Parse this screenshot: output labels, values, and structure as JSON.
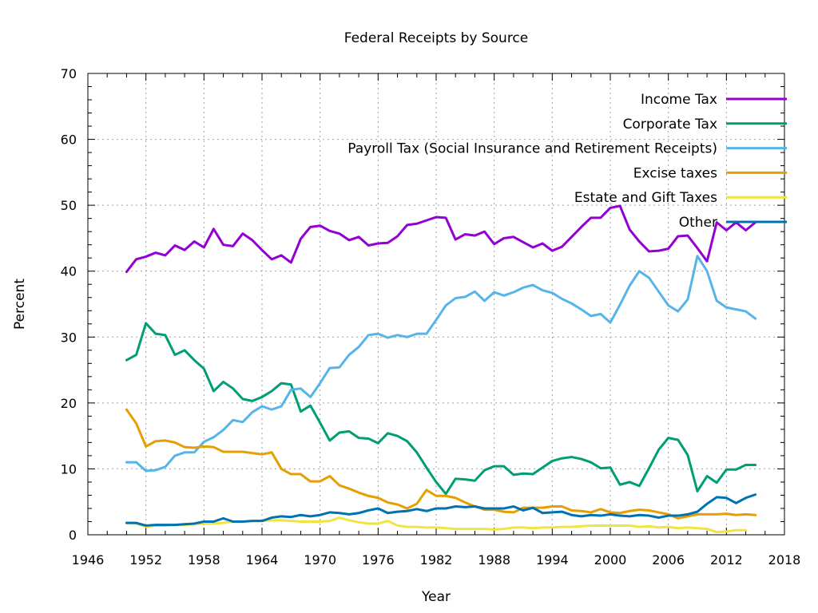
{
  "chart_data": {
    "type": "line",
    "title": "Federal Receipts by Source",
    "xlabel": "Year",
    "ylabel": "Percent",
    "xlim": [
      1946,
      2018
    ],
    "ylim": [
      0,
      70
    ],
    "x_ticks": [
      "1946",
      "1952",
      "1958",
      "1964",
      "1970",
      "1976",
      "1982",
      "1988",
      "1994",
      "2000",
      "2006",
      "2012",
      "2018"
    ],
    "y_ticks": [
      "0",
      "10",
      "20",
      "30",
      "40",
      "50",
      "60",
      "70"
    ],
    "grid": true,
    "legend_position": "top-right",
    "x": [
      1950,
      1951,
      1952,
      1953,
      1954,
      1955,
      1956,
      1957,
      1958,
      1959,
      1960,
      1961,
      1962,
      1963,
      1964,
      1965,
      1966,
      1967,
      1968,
      1969,
      1970,
      1971,
      1972,
      1973,
      1974,
      1975,
      1976,
      1977,
      1978,
      1979,
      1980,
      1981,
      1982,
      1983,
      1984,
      1985,
      1986,
      1987,
      1988,
      1989,
      1990,
      1991,
      1992,
      1993,
      1994,
      1995,
      1996,
      1997,
      1998,
      1999,
      2000,
      2001,
      2002,
      2003,
      2004,
      2005,
      2006,
      2007,
      2008,
      2009,
      2010,
      2011,
      2012,
      2013,
      2014,
      2015
    ],
    "series": [
      {
        "name": "Income Tax",
        "color": "#9400d3",
        "values": [
          39.9,
          41.8,
          42.2,
          42.8,
          42.4,
          43.9,
          43.2,
          44.5,
          43.6,
          46.4,
          44.0,
          43.8,
          45.7,
          44.7,
          43.2,
          41.8,
          42.4,
          41.3,
          44.9,
          46.7,
          46.9,
          46.1,
          45.7,
          44.7,
          45.2,
          43.9,
          44.2,
          44.3,
          45.3,
          47.0,
          47.2,
          47.7,
          48.2,
          48.1,
          44.8,
          45.6,
          45.4,
          46.0,
          44.1,
          45.0,
          45.2,
          44.4,
          43.6,
          44.2,
          43.1,
          43.7,
          45.2,
          46.7,
          48.1,
          48.1,
          49.6,
          49.9,
          46.3,
          44.5,
          43.0,
          43.1,
          43.4,
          45.3,
          45.4,
          43.5,
          41.5,
          47.4,
          46.2,
          47.4,
          46.2,
          47.4
        ]
      },
      {
        "name": "Corporate Tax",
        "color": "#009e73",
        "values": [
          26.5,
          27.3,
          32.1,
          30.5,
          30.3,
          27.3,
          28.0,
          26.5,
          25.2,
          21.8,
          23.2,
          22.2,
          20.6,
          20.3,
          20.9,
          21.8,
          23.0,
          22.8,
          18.7,
          19.6,
          17.0,
          14.3,
          15.5,
          15.7,
          14.7,
          14.6,
          13.9,
          15.4,
          15.0,
          14.2,
          12.5,
          10.2,
          8.0,
          6.2,
          8.5,
          8.4,
          8.2,
          9.8,
          10.4,
          10.4,
          9.1,
          9.3,
          9.2,
          10.2,
          11.2,
          11.6,
          11.8,
          11.5,
          11.0,
          10.1,
          10.2,
          7.6,
          8.0,
          7.4,
          10.1,
          12.9,
          14.7,
          14.4,
          12.1,
          6.6,
          8.9,
          7.9,
          9.9,
          9.9,
          10.6,
          10.6
        ]
      },
      {
        "name": "Payroll Tax (Social Insurance and Retirement Receipts)",
        "color": "#56b4e9",
        "values": [
          11.0,
          11.0,
          9.7,
          9.8,
          10.3,
          12.0,
          12.5,
          12.5,
          14.1,
          14.8,
          15.9,
          17.4,
          17.1,
          18.6,
          19.5,
          19.0,
          19.5,
          22.0,
          22.2,
          20.9,
          23.0,
          25.3,
          25.4,
          27.3,
          28.5,
          30.3,
          30.5,
          29.9,
          30.3,
          30.0,
          30.5,
          30.5,
          32.6,
          34.8,
          35.9,
          36.1,
          36.9,
          35.5,
          36.8,
          36.3,
          36.8,
          37.5,
          37.9,
          37.1,
          36.7,
          35.8,
          35.1,
          34.2,
          33.2,
          33.5,
          32.2,
          34.9,
          37.8,
          40.0,
          39.0,
          36.9,
          34.8,
          33.9,
          35.7,
          42.3,
          40.0,
          35.5,
          34.5,
          34.2,
          33.9,
          32.8
        ]
      },
      {
        "name": "Excise taxes",
        "color": "#e69f00",
        "values": [
          19.0,
          16.9,
          13.4,
          14.2,
          14.3,
          14.0,
          13.3,
          13.2,
          13.4,
          13.3,
          12.6,
          12.6,
          12.6,
          12.4,
          12.2,
          12.5,
          10.0,
          9.2,
          9.2,
          8.1,
          8.1,
          8.9,
          7.5,
          7.0,
          6.4,
          5.9,
          5.6,
          4.9,
          4.6,
          4.0,
          4.7,
          6.8,
          5.9,
          5.9,
          5.6,
          4.9,
          4.3,
          3.8,
          3.8,
          3.5,
          3.4,
          4.1,
          4.1,
          4.1,
          4.3,
          4.3,
          3.7,
          3.6,
          3.4,
          3.9,
          3.4,
          3.3,
          3.6,
          3.8,
          3.7,
          3.4,
          3.1,
          2.5,
          2.8,
          3.1,
          3.1,
          3.1,
          3.2,
          3.0,
          3.1,
          3.0
        ]
      },
      {
        "name": "Estate and Gift Taxes",
        "color": "#f0e442",
        "values": [
          1.8,
          1.7,
          1.2,
          1.4,
          1.4,
          1.5,
          1.5,
          1.6,
          1.7,
          1.7,
          1.8,
          2.0,
          2.0,
          2.1,
          2.1,
          2.2,
          2.2,
          2.1,
          2.0,
          2.0,
          2.0,
          2.1,
          2.6,
          2.2,
          1.9,
          1.7,
          1.7,
          2.1,
          1.4,
          1.2,
          1.2,
          1.1,
          1.1,
          1.0,
          0.9,
          0.9,
          0.9,
          0.9,
          0.8,
          0.9,
          1.1,
          1.1,
          1.0,
          1.1,
          1.1,
          1.2,
          1.2,
          1.3,
          1.4,
          1.4,
          1.4,
          1.4,
          1.4,
          1.2,
          1.3,
          1.1,
          1.2,
          1.0,
          1.1,
          1.0,
          0.9,
          0.4,
          0.5,
          0.7,
          0.7,
          null
        ]
      },
      {
        "name": "Other",
        "color": "#0072b2",
        "values": [
          1.8,
          1.8,
          1.4,
          1.5,
          1.5,
          1.5,
          1.6,
          1.7,
          2.0,
          2.0,
          2.5,
          2.0,
          2.0,
          2.1,
          2.1,
          2.6,
          2.8,
          2.7,
          3.0,
          2.8,
          3.0,
          3.4,
          3.3,
          3.1,
          3.3,
          3.7,
          4.0,
          3.3,
          3.5,
          3.6,
          3.9,
          3.6,
          4.0,
          4.0,
          4.3,
          4.2,
          4.3,
          4.0,
          4.0,
          4.0,
          4.3,
          3.7,
          4.1,
          3.3,
          3.4,
          3.5,
          3.0,
          2.8,
          3.0,
          2.9,
          3.1,
          2.9,
          2.8,
          3.0,
          2.9,
          2.6,
          2.9,
          2.9,
          3.1,
          3.5,
          4.7,
          5.7,
          5.6,
          4.8,
          5.6,
          6.1
        ]
      }
    ]
  }
}
